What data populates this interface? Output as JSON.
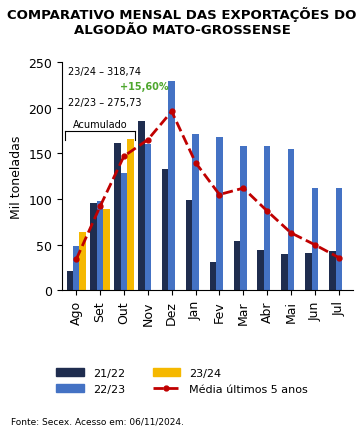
{
  "chart_data": {
    "type": "bar",
    "title": "COMPARATIVO MENSAL DAS EXPORTAÇÕES DO ALGODÃO MATO-GROSSENSE",
    "y_label": "Mil toneladas",
    "source": "Fonte: Secex. Acesso em: 06/11/2024.",
    "annotations": [
      "23/24 – 318,74",
      "+15,60%",
      "22/23 – 275,73",
      "Acumulado"
    ],
    "categories": [
      "Ago",
      "Set",
      "Out",
      "Nov",
      "Dez",
      "Jan",
      "Fev",
      "Mar",
      "Abr",
      "Mai",
      "Jun",
      "Jul"
    ],
    "series": [
      {
        "name": "21/22",
        "color": "#1f2d4f",
        "values": [
          21,
          96,
          161,
          186,
          133,
          99,
          31,
          54,
          44,
          40,
          41,
          43
        ]
      },
      {
        "name": "22/23",
        "color": "#4472c4",
        "values": [
          49,
          98,
          129,
          160,
          229,
          171,
          168,
          158,
          158,
          155,
          112,
          112
        ]
      },
      {
        "name": "23/24",
        "color": "#f5b800",
        "values": [
          64,
          89,
          166,
          null,
          null,
          null,
          null,
          null,
          null,
          null,
          null,
          null
        ]
      },
      {
        "name": "Média últimos 5 anos",
        "type": "line",
        "color": "#c00000",
        "line_style": "dashed",
        "marker": "o",
        "values": [
          34,
          92,
          147,
          165,
          196,
          140,
          105,
          112,
          87,
          63,
          50,
          36
        ]
      }
    ],
    "ylim": [
      0,
      250
    ],
    "yticks": [
      0,
      50,
      100,
      150,
      200,
      250
    ],
    "grid": false,
    "legend": "lower center"
  }
}
